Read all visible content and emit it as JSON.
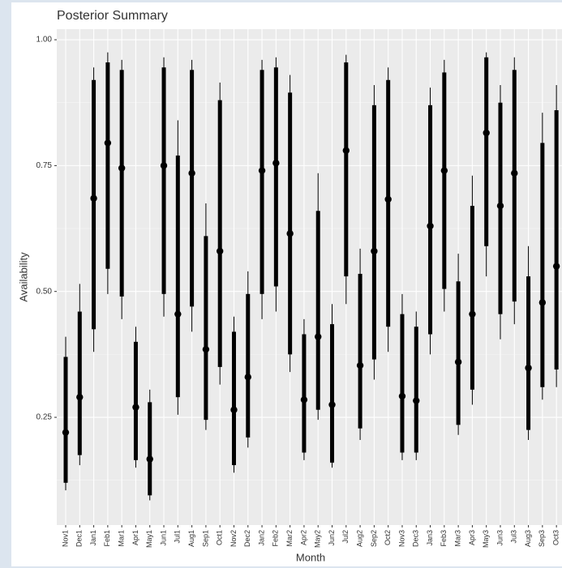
{
  "chart_data": {
    "type": "interval",
    "title": "Posterior Summary",
    "x_label": "Month",
    "y_label": "Availability",
    "categories": [
      "Nov1",
      "Dec1",
      "Jan1",
      "Feb1",
      "Mar1",
      "Apr1",
      "May1",
      "Jun1",
      "Jul1",
      "Aug1",
      "Sep1",
      "Oct1",
      "Nov2",
      "Dec2",
      "Jan2",
      "Feb2",
      "Mar2",
      "Apr2",
      "May2",
      "Jun2",
      "Jul2",
      "Aug2",
      "Sep2",
      "Oct2",
      "Nov3",
      "Dec3",
      "Jan3",
      "Feb3",
      "Mar3",
      "Apr3",
      "May3",
      "Jun3",
      "Jul3",
      "Aug3",
      "Sep3",
      "Oct3"
    ],
    "median": [
      0.22,
      0.29,
      0.685,
      0.795,
      0.745,
      0.27,
      0.167,
      0.75,
      0.455,
      0.735,
      0.385,
      0.58,
      0.265,
      0.33,
      0.74,
      0.755,
      0.615,
      0.285,
      0.41,
      0.275,
      0.78,
      0.353,
      0.58,
      0.683,
      0.292,
      0.283,
      0.63,
      0.74,
      0.36,
      0.455,
      0.815,
      0.67,
      0.735,
      0.348,
      0.478,
      0.55
    ],
    "inner_lower": [
      0.12,
      0.175,
      0.425,
      0.545,
      0.49,
      0.165,
      0.095,
      0.495,
      0.29,
      0.47,
      0.245,
      0.35,
      0.155,
      0.21,
      0.495,
      0.51,
      0.375,
      0.18,
      0.265,
      0.16,
      0.53,
      0.228,
      0.365,
      0.43,
      0.18,
      0.18,
      0.415,
      0.505,
      0.235,
      0.305,
      0.59,
      0.455,
      0.48,
      0.225,
      0.31,
      0.345
    ],
    "inner_upper": [
      0.37,
      0.46,
      0.92,
      0.955,
      0.94,
      0.4,
      0.28,
      0.945,
      0.77,
      0.94,
      0.61,
      0.88,
      0.42,
      0.495,
      0.94,
      0.945,
      0.895,
      0.415,
      0.66,
      0.435,
      0.955,
      0.535,
      0.87,
      0.92,
      0.455,
      0.43,
      0.87,
      0.935,
      0.52,
      0.67,
      0.965,
      0.875,
      0.94,
      0.53,
      0.795,
      0.86
    ],
    "outer_lower": [
      0.105,
      0.155,
      0.38,
      0.495,
      0.445,
      0.15,
      0.085,
      0.45,
      0.255,
      0.42,
      0.225,
      0.315,
      0.14,
      0.19,
      0.445,
      0.46,
      0.34,
      0.165,
      0.245,
      0.15,
      0.475,
      0.205,
      0.325,
      0.38,
      0.165,
      0.165,
      0.375,
      0.46,
      0.215,
      0.275,
      0.53,
      0.405,
      0.435,
      0.205,
      0.285,
      0.31
    ],
    "outer_upper": [
      0.41,
      0.515,
      0.945,
      0.975,
      0.96,
      0.43,
      0.305,
      0.965,
      0.84,
      0.96,
      0.675,
      0.915,
      0.45,
      0.54,
      0.96,
      0.965,
      0.93,
      0.445,
      0.735,
      0.475,
      0.97,
      0.585,
      0.91,
      0.945,
      0.495,
      0.46,
      0.905,
      0.96,
      0.575,
      0.73,
      0.975,
      0.91,
      0.965,
      0.59,
      0.855,
      0.91
    ],
    "color": "#000000",
    "ylim": [
      0.036,
      1.021
    ],
    "yticks": [
      {
        "value": 0.25,
        "label": "0.25"
      },
      {
        "value": 0.5,
        "label": "0.50"
      },
      {
        "value": 0.75,
        "label": "0.75"
      },
      {
        "value": 1.0,
        "label": "1.00"
      }
    ],
    "grid": true
  }
}
